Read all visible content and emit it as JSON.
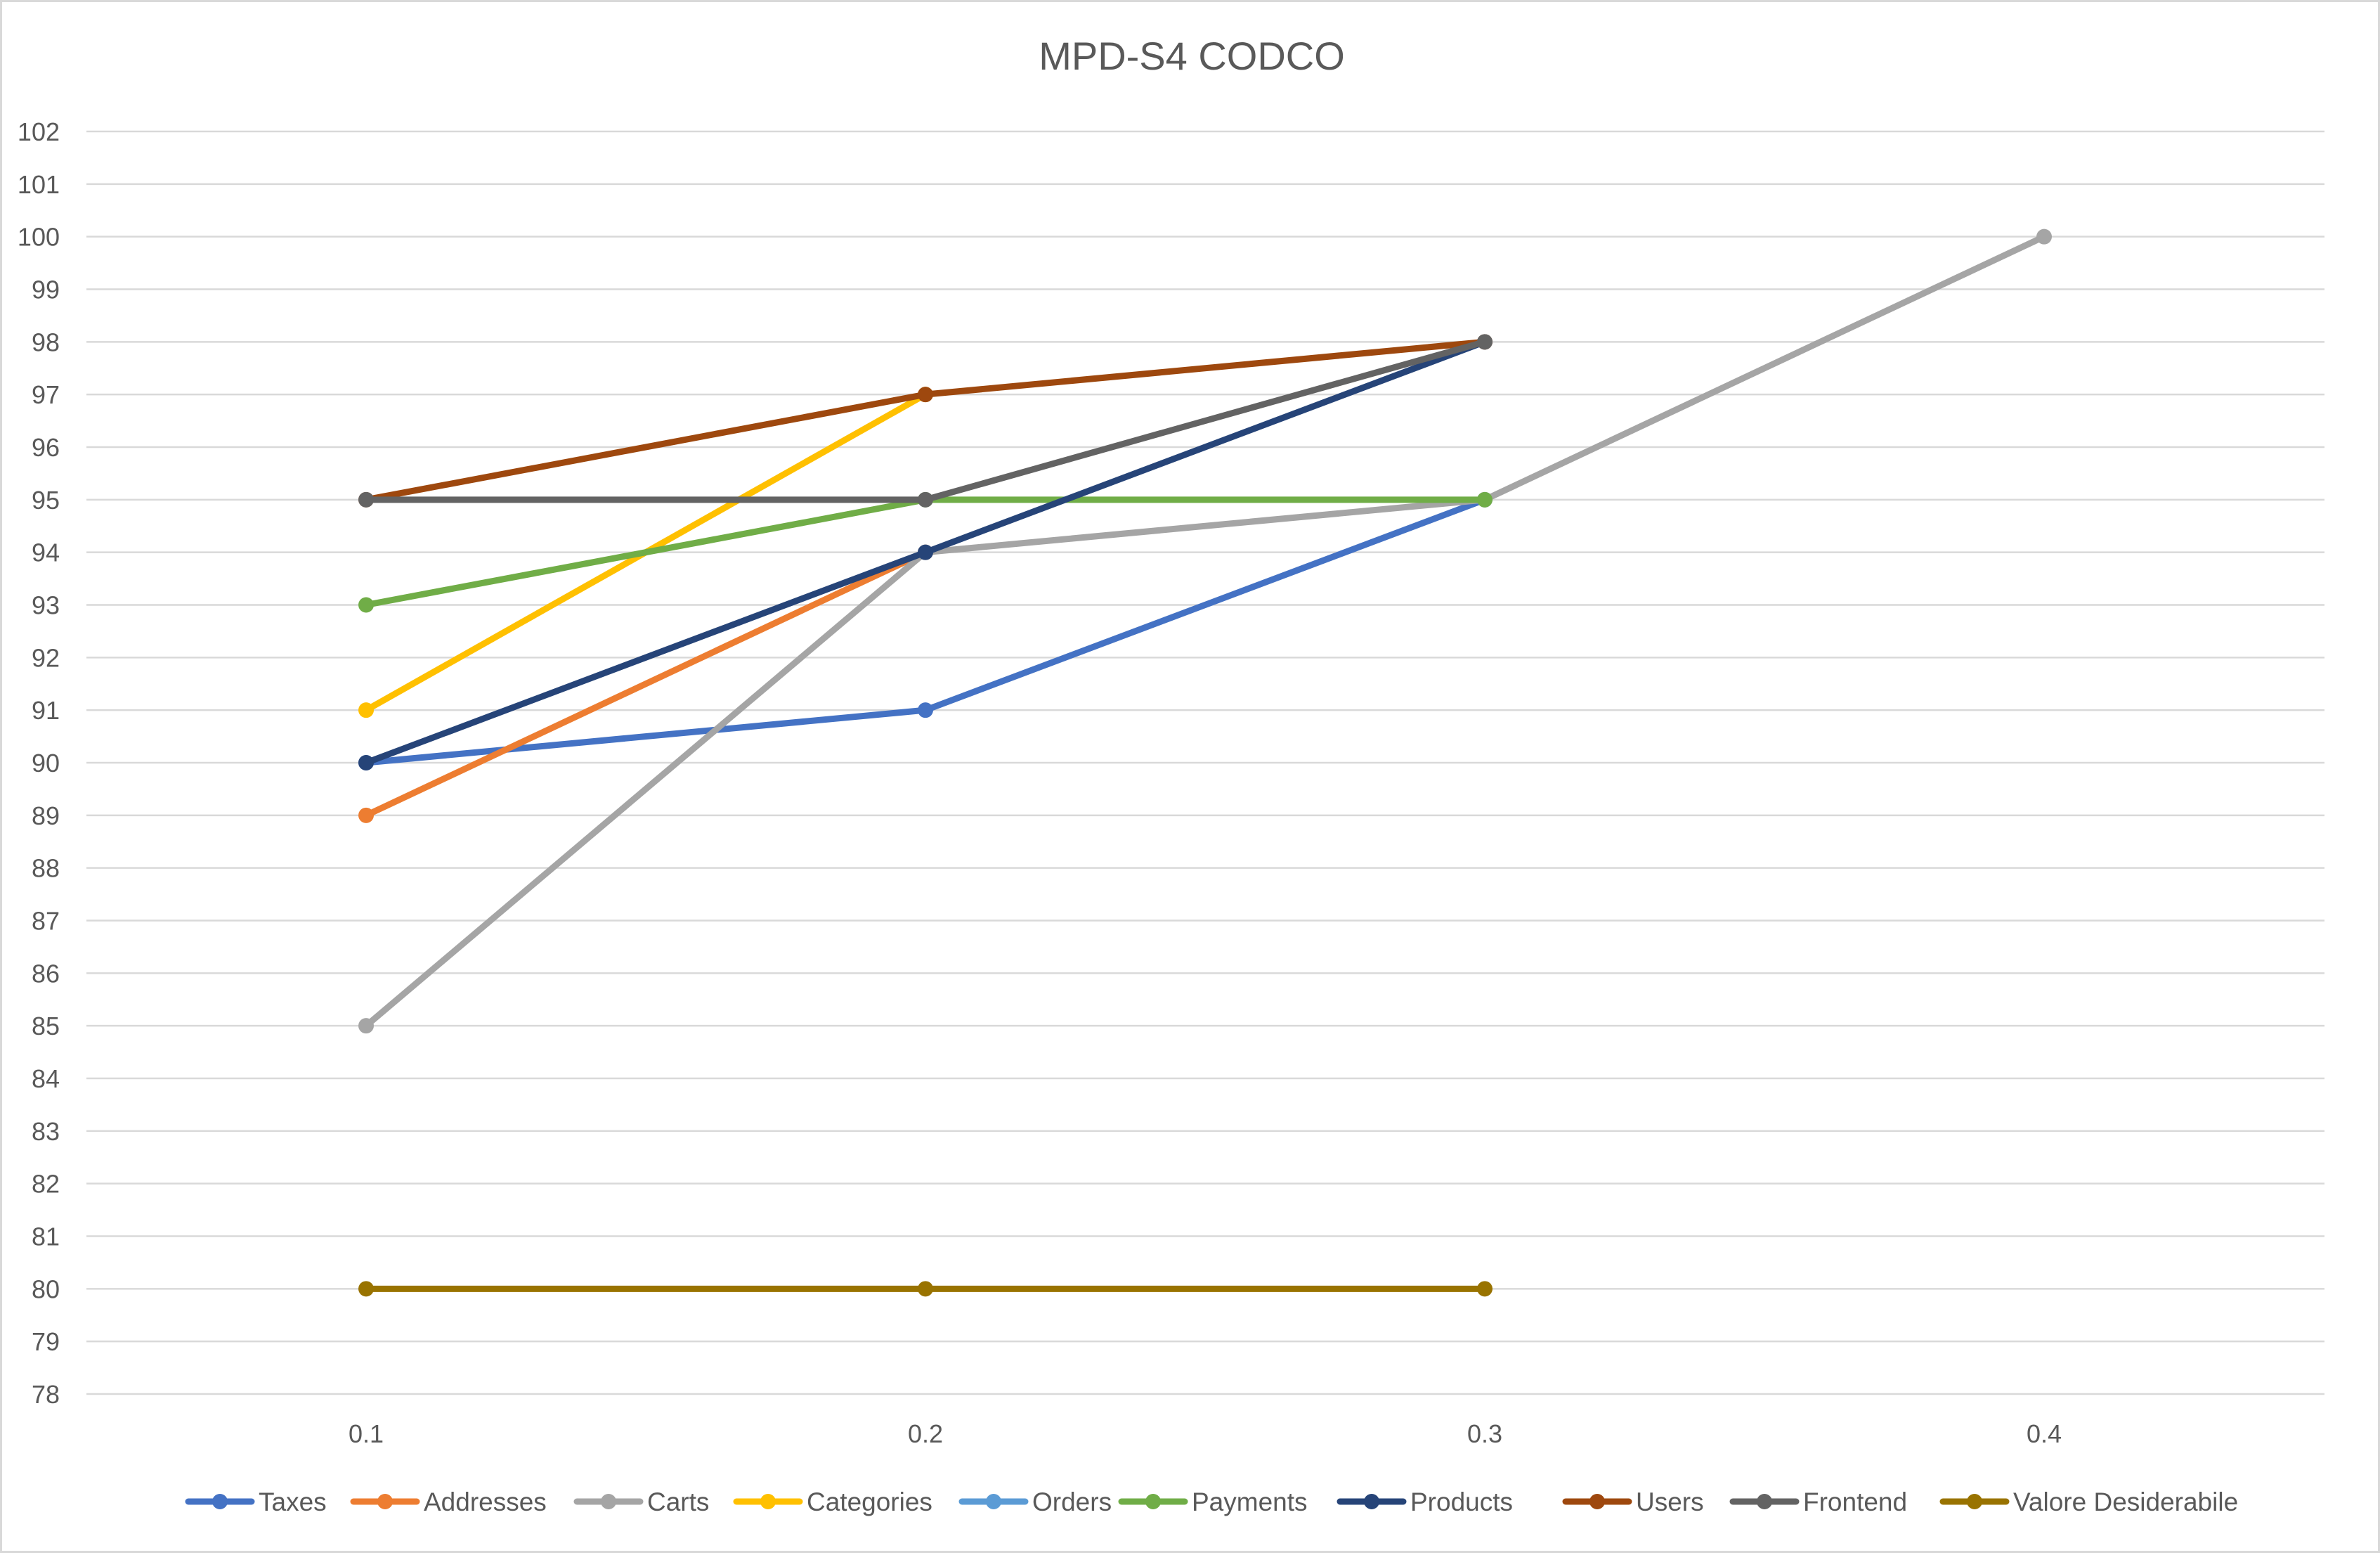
{
  "chart_data": {
    "type": "line",
    "title": "MPD-S4 CODCO",
    "xlabel": "",
    "ylabel": "",
    "categories": [
      "0.1",
      "0.2",
      "0.3",
      "0.4"
    ],
    "ylim": [
      78,
      102
    ],
    "yticks": [
      78,
      79,
      80,
      81,
      82,
      83,
      84,
      85,
      86,
      87,
      88,
      89,
      90,
      91,
      92,
      93,
      94,
      95,
      96,
      97,
      98,
      99,
      100,
      101,
      102
    ],
    "grid": true,
    "legend_position": "bottom",
    "series": [
      {
        "name": "Taxes",
        "color": "#4472C4",
        "values": [
          90,
          91,
          95,
          null
        ]
      },
      {
        "name": "Addresses",
        "color": "#ED7D31",
        "values": [
          89,
          94,
          null,
          null
        ]
      },
      {
        "name": "Carts",
        "color": "#A5A5A5",
        "values": [
          85,
          94,
          95,
          100
        ]
      },
      {
        "name": "Categories",
        "color": "#FFC000",
        "values": [
          91,
          97,
          null,
          null
        ]
      },
      {
        "name": "Orders",
        "color": "#5B9BD5",
        "values": [
          null,
          null,
          null,
          null
        ]
      },
      {
        "name": "Payments",
        "color": "#70AD47",
        "values": [
          93,
          95,
          95,
          null
        ]
      },
      {
        "name": "Products",
        "color": "#264478",
        "values": [
          90,
          94,
          98,
          null
        ]
      },
      {
        "name": "Users",
        "color": "#9E480E",
        "values": [
          95,
          97,
          98,
          null
        ]
      },
      {
        "name": "Frontend",
        "color": "#636363",
        "values": [
          95,
          95,
          98,
          null
        ]
      },
      {
        "name": "Valore Desiderabile",
        "color": "#997300",
        "values": [
          80,
          80,
          80,
          null
        ]
      }
    ]
  }
}
